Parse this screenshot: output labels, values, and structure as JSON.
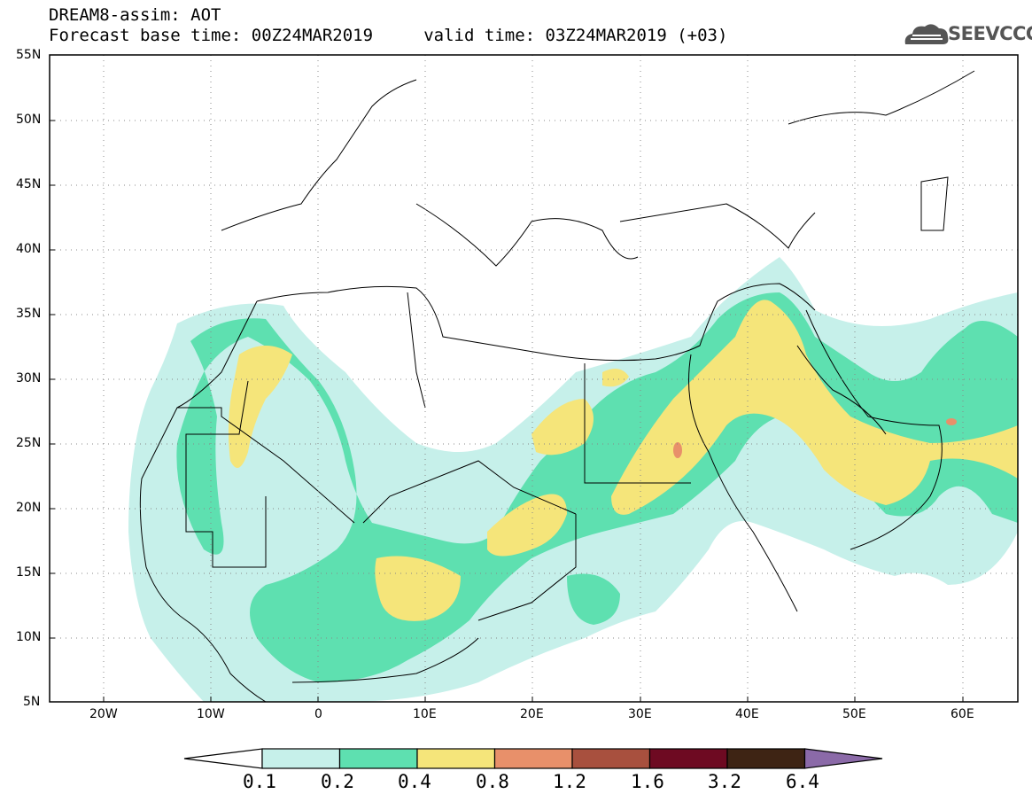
{
  "header": {
    "title_line1": "DREAM8-assim: AOT",
    "title_line2": "Forecast base time: 00Z24MAR2019     valid time: 03Z24MAR2019 (+03)"
  },
  "logo": {
    "text": "SEEVCCC",
    "icon": "cloud-icon"
  },
  "map": {
    "lat_labels": [
      "55N",
      "50N",
      "45N",
      "40N",
      "35N",
      "30N",
      "25N",
      "20N",
      "15N",
      "10N",
      "5N"
    ],
    "lon_labels": [
      "20W",
      "10W",
      "0",
      "10E",
      "20E",
      "30E",
      "40E",
      "50E",
      "60E"
    ],
    "lat_range": [
      5,
      55
    ],
    "lon_range": [
      -25,
      65
    ],
    "grid": "dotted"
  },
  "legend": {
    "levels": [
      "0.1",
      "0.2",
      "0.4",
      "0.8",
      "1.2",
      "1.6",
      "3.2",
      "6.4"
    ],
    "colors": [
      "#ffffff",
      "#c6f0ea",
      "#5ee0b0",
      "#f5e57a",
      "#e8906a",
      "#a8503e",
      "#6e0a22",
      "#3e2414",
      "#8b6aa8"
    ]
  },
  "colors": {
    "c1": "#c6f0ea",
    "c2": "#5ee0b0",
    "c3": "#f5e57a",
    "c4": "#e8906a"
  }
}
